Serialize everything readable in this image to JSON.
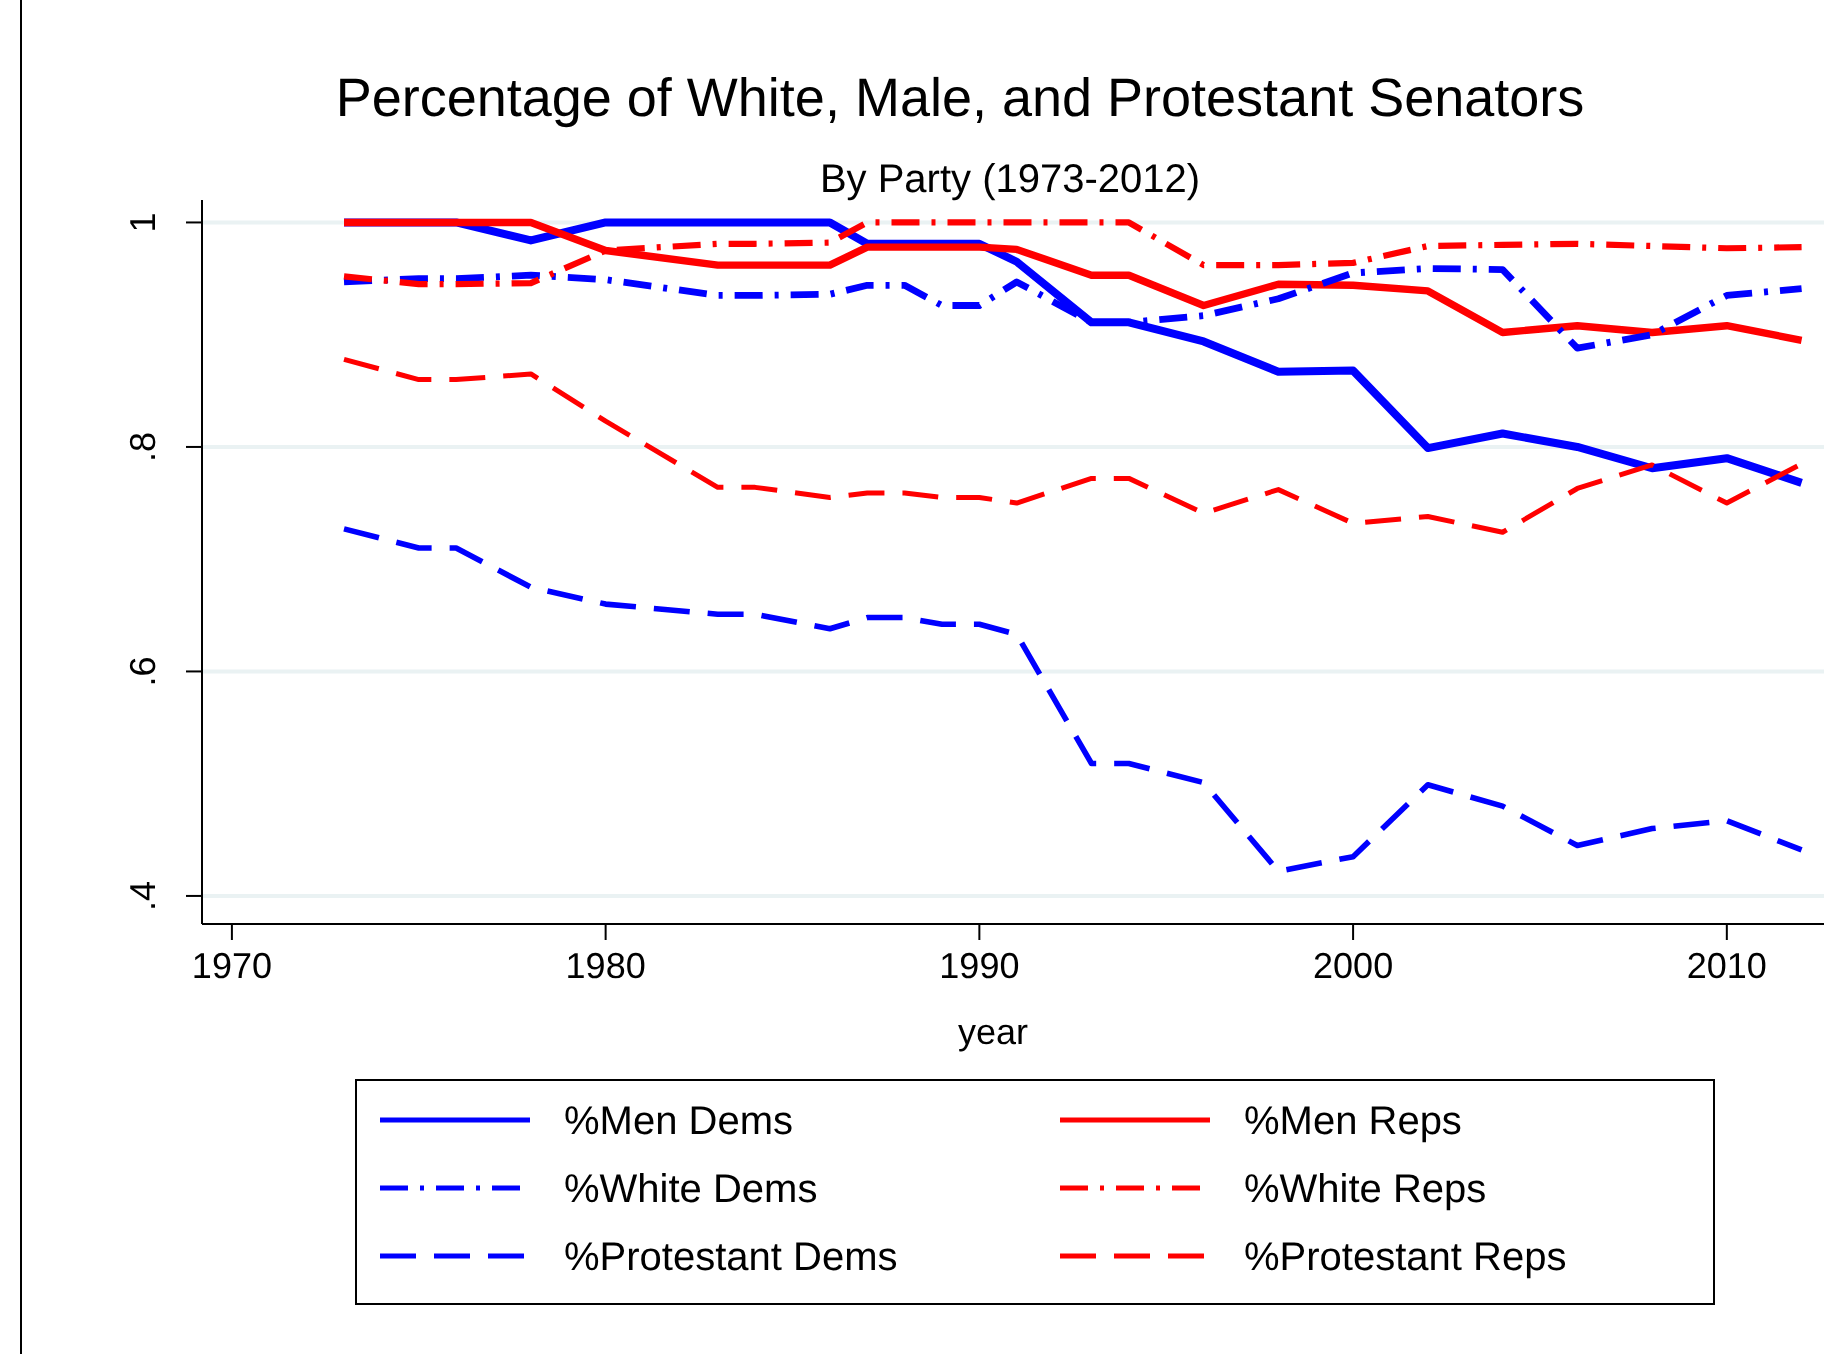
{
  "chart_data": {
    "type": "line",
    "title": "Percentage of White, Male, and Protestant Senators",
    "subtitle": "By Party (1973-2012)",
    "xlabel": "year",
    "x": [
      1973,
      1975,
      1976,
      1978,
      1980,
      1983,
      1984,
      1986,
      1987,
      1988,
      1989,
      1990,
      1991,
      1993,
      1994,
      1996,
      1998,
      2000,
      2002,
      2004,
      2006,
      2008,
      2010,
      2012
    ],
    "xlim": [
      1969.2,
      2012.6
    ],
    "xticks": [
      1970,
      1980,
      1990,
      2000,
      2010
    ],
    "ylim": [
      0.375,
      1.02
    ],
    "yticks": [
      {
        "value": 0.4,
        "label": ".4"
      },
      {
        "value": 0.6,
        "label": ".6"
      },
      {
        "value": 0.8,
        "label": ".8"
      },
      {
        "value": 1,
        "label": "1"
      }
    ],
    "grid": "y",
    "legend": "bottom",
    "marker": "none",
    "series": [
      {
        "name": "%Men Dems",
        "color": "#0000ff",
        "line_style": "solid",
        "values": [
          1,
          1,
          1,
          0.984,
          1,
          1,
          1,
          1,
          0.981,
          0.981,
          0.981,
          0.981,
          0.965,
          0.911,
          0.911,
          0.894,
          0.867,
          0.868,
          0.799,
          0.812,
          0.8,
          0.781,
          0.79,
          0.768
        ]
      },
      {
        "name": "%Men Reps",
        "color": "#ff0000",
        "line_style": "solid",
        "values": [
          1,
          1,
          1,
          1,
          0.975,
          0.962,
          0.962,
          0.962,
          0.978,
          0.978,
          0.978,
          0.978,
          0.976,
          0.953,
          0.953,
          0.926,
          0.945,
          0.944,
          0.939,
          0.902,
          0.908,
          0.902,
          0.908,
          0.895
        ]
      },
      {
        "name": "%White Dems",
        "color": "#0000ff",
        "line_style": "dashdot",
        "values": [
          0.947,
          0.95,
          0.95,
          0.953,
          0.949,
          0.935,
          0.935,
          0.936,
          0.944,
          0.944,
          0.926,
          0.926,
          0.947,
          0.911,
          0.911,
          0.917,
          0.932,
          0.955,
          0.959,
          0.958,
          0.888,
          0.9,
          0.935,
          0.941
        ]
      },
      {
        "name": "%White Reps",
        "color": "#ff0000",
        "line_style": "dashdot",
        "values": [
          0.952,
          0.945,
          0.945,
          0.946,
          0.975,
          0.981,
          0.981,
          0.982,
          1,
          1,
          1,
          1,
          1,
          1,
          1,
          0.962,
          0.962,
          0.964,
          0.979,
          0.98,
          0.981,
          0.979,
          0.977,
          0.978
        ]
      },
      {
        "name": "%Protestant Dems",
        "color": "#0000ff",
        "line_style": "dashed",
        "values": [
          0.727,
          0.71,
          0.71,
          0.675,
          0.66,
          0.651,
          0.651,
          0.638,
          0.648,
          0.648,
          0.642,
          0.642,
          0.633,
          0.518,
          0.518,
          0.501,
          0.422,
          0.435,
          0.499,
          0.48,
          0.445,
          0.46,
          0.467,
          0.441
        ]
      },
      {
        "name": "%Protestant Reps",
        "color": "#ff0000",
        "line_style": "dashed",
        "values": [
          0.878,
          0.86,
          0.86,
          0.865,
          0.823,
          0.764,
          0.764,
          0.755,
          0.759,
          0.759,
          0.755,
          0.755,
          0.75,
          0.772,
          0.772,
          0.741,
          0.762,
          0.732,
          0.738,
          0.724,
          0.763,
          0.784,
          0.75,
          0.785
        ]
      }
    ]
  }
}
